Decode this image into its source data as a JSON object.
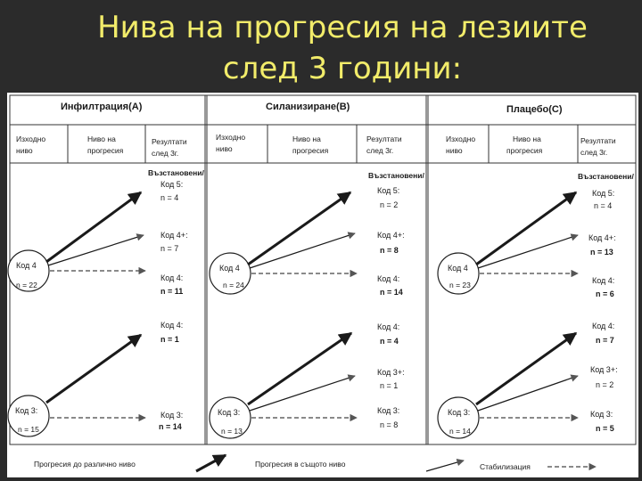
{
  "slide": {
    "title_line1": "Нива на прогресия на лезиите",
    "title_line2": "след 3 години:"
  },
  "columns": [
    {
      "header": "Инфилтрация(A)",
      "sub": [
        "Изходно",
        "ниво",
        "Ниво на",
        "прогресия",
        "Резултати",
        "след 3г."
      ],
      "restored": "Възстановени/",
      "start_top": {
        "label": "Код 4",
        "n": "n = 22"
      },
      "start_bottom": {
        "label": "Код 3:",
        "n": "n = 15"
      },
      "results": [
        {
          "label": "Код 5:",
          "n": "n = 4"
        },
        {
          "label": "Код 4+:",
          "n": "n = 7"
        },
        {
          "label": "Код 4:",
          "n": "n = 11"
        },
        {
          "label": "Код 4:",
          "n": "n = 1"
        },
        {
          "label": "Код 3:",
          "n": "n = 14"
        }
      ]
    },
    {
      "header": "Силанизиране(B)",
      "sub": [
        "Изходно",
        "ниво",
        "Ниво на",
        "прогресия",
        "Резултати",
        "след 3г."
      ],
      "restored": "Възстановени/",
      "start_top": {
        "label": "Код 4",
        "n": "n = 24"
      },
      "start_bottom": {
        "label": "Код 3:",
        "n": "n = 13"
      },
      "results": [
        {
          "label": "Код 5:",
          "n": "n = 2"
        },
        {
          "label": "Код 4+:",
          "n": "n = 8"
        },
        {
          "label": "Код 4:",
          "n": "n = 14"
        },
        {
          "label": "Код 4:",
          "n": "n = 4"
        },
        {
          "label": "Код 3+:",
          "n": "n = 1"
        },
        {
          "label": "Код 3:",
          "n": "n = 8"
        }
      ]
    },
    {
      "header": "Плацебо(C)",
      "sub": [
        "Изходно",
        "ниво",
        "Ниво на",
        "прогресия",
        "Резултати",
        "след 3г."
      ],
      "restored": "Възстановени/",
      "start_top": {
        "label": "Код 4",
        "n": "n = 23"
      },
      "start_bottom": {
        "label": "Код 3:",
        "n": "n = 14"
      },
      "results": [
        {
          "label": "Код 5:",
          "n": "n = 4"
        },
        {
          "label": "Код 4+:",
          "n": "n = 13"
        },
        {
          "label": "Код 4:",
          "n": "n = 6"
        },
        {
          "label": "Код 4:",
          "n": "n = 7"
        },
        {
          "label": "Код 3+:",
          "n": "n = 2"
        },
        {
          "label": "Код 3:",
          "n": "n = 5"
        }
      ]
    }
  ],
  "legend": {
    "thick": "Прогресия до различно ниво",
    "thin": "Прогресия в същото ниво",
    "dashed": "Стабилизация"
  }
}
